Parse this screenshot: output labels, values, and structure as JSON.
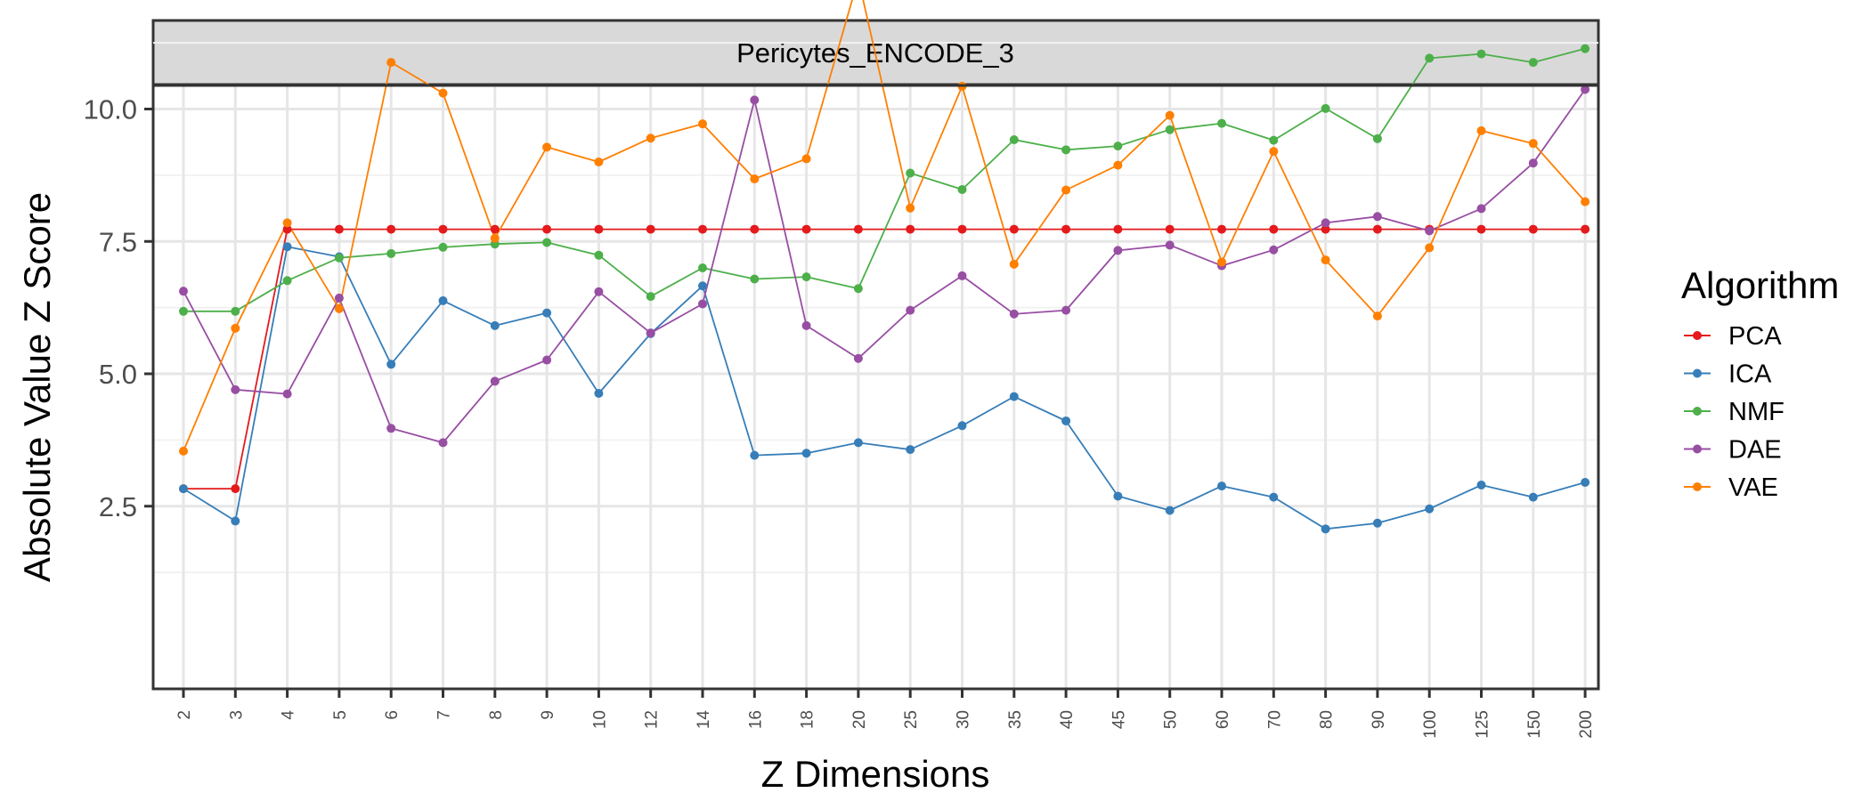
{
  "chart_data": {
    "type": "line",
    "facet_title": "Pericytes_ENCODE_3",
    "xlabel": "Z Dimensions",
    "ylabel": "Absolute Value Z Score",
    "categories": [
      "2",
      "3",
      "4",
      "5",
      "6",
      "7",
      "8",
      "9",
      "10",
      "12",
      "14",
      "16",
      "18",
      "20",
      "25",
      "30",
      "35",
      "40",
      "45",
      "50",
      "60",
      "70",
      "80",
      "90",
      "100",
      "125",
      "150",
      "200"
    ],
    "y_ticks": [
      "2.5",
      "5.0",
      "7.5",
      "10.0",
      "12.5"
    ],
    "ylim": [
      1.8,
      12.9
    ],
    "grid": true,
    "legend": {
      "title": "Algorithm",
      "position": "right"
    },
    "series": [
      {
        "name": "PCA",
        "color": "#e41a1c",
        "values": [
          2.83,
          2.83,
          7.73,
          7.73,
          7.73,
          7.73,
          7.73,
          7.73,
          7.73,
          7.73,
          7.73,
          7.73,
          7.73,
          7.73,
          7.73,
          7.73,
          7.73,
          7.73,
          7.73,
          7.73,
          7.73,
          7.73,
          7.73,
          7.73,
          7.73,
          7.73,
          7.73,
          7.73
        ]
      },
      {
        "name": "ICA",
        "color": "#377eb8",
        "values": [
          2.83,
          2.22,
          7.4,
          7.21,
          5.18,
          6.38,
          5.91,
          6.15,
          4.63,
          5.76,
          6.66,
          3.46,
          3.5,
          3.7,
          3.57,
          4.02,
          4.57,
          4.11,
          2.69,
          2.42,
          2.88,
          2.67,
          2.07,
          2.18,
          2.45,
          2.9,
          2.67,
          2.95
        ]
      },
      {
        "name": "NMF",
        "color": "#4daf4a",
        "values": [
          6.18,
          6.18,
          6.76,
          7.19,
          7.27,
          7.39,
          7.45,
          7.48,
          7.24,
          6.46,
          7.0,
          6.79,
          6.83,
          6.61,
          8.79,
          8.48,
          9.42,
          9.23,
          9.3,
          9.61,
          9.73,
          9.41,
          10.01,
          9.44,
          10.96,
          11.04,
          10.88,
          11.14
        ]
      },
      {
        "name": "DAE",
        "color": "#984ea3",
        "values": [
          6.56,
          4.7,
          4.62,
          6.43,
          3.97,
          3.7,
          4.86,
          5.26,
          6.55,
          5.77,
          6.32,
          10.17,
          5.91,
          5.29,
          6.2,
          6.85,
          6.13,
          6.2,
          7.33,
          7.43,
          7.04,
          7.34,
          7.85,
          7.97,
          7.7,
          8.12,
          8.98,
          10.37
        ]
      },
      {
        "name": "VAE",
        "color": "#ff7f00",
        "values": [
          3.54,
          5.86,
          7.85,
          6.23,
          10.88,
          10.3,
          7.56,
          9.28,
          9.0,
          9.45,
          9.72,
          8.68,
          9.06,
          12.46,
          8.13,
          10.43,
          7.07,
          8.47,
          8.94,
          9.88,
          7.11,
          9.2,
          7.15,
          6.09,
          7.38,
          9.59,
          9.35,
          8.25
        ]
      }
    ]
  }
}
